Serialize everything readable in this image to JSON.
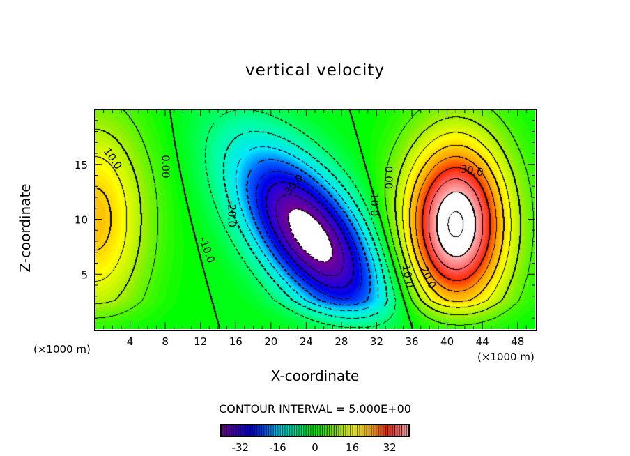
{
  "chart_data": {
    "type": "heatmap",
    "subtype": "filled-contour",
    "title": "vertical velocity",
    "xlabel": "X-coordinate",
    "ylabel": "Z-coordinate",
    "x_unit_label": "(×1000 m)",
    "z_unit_label": "(×1000 m)",
    "xlim": [
      0,
      50
    ],
    "ylim": [
      0,
      20
    ],
    "xticks": [
      4,
      8,
      12,
      16,
      20,
      24,
      28,
      32,
      36,
      40,
      44,
      48
    ],
    "yticks": [
      5,
      10,
      15
    ],
    "contour_interval_text": "CONTOUR INTERVAL = 5.000E+00",
    "contour_interval": 5,
    "colorbar": {
      "range": [
        -40,
        40
      ],
      "ticks": [
        -32,
        -16,
        0,
        16,
        32
      ]
    },
    "features": [
      {
        "name": "updraft-left-edge",
        "x": 0,
        "z": 10,
        "amplitude": 22
      },
      {
        "name": "downdraft",
        "x": 24.5,
        "z": 8.5,
        "amplitude": -44
      },
      {
        "name": "updraft-right",
        "x": 41,
        "z": 9.5,
        "amplitude": 46
      }
    ],
    "contour_labels": [
      {
        "text": "10.0",
        "x": 2,
        "z": 15.5,
        "angle": 55
      },
      {
        "text": "0.00",
        "x": 8,
        "z": 14.8,
        "angle": 90
      },
      {
        "text": "-30.0",
        "x": 22.5,
        "z": 13,
        "angle": -50
      },
      {
        "text": "-20.0",
        "x": 15.5,
        "z": 10.5,
        "angle": 90
      },
      {
        "text": "-10.0",
        "x": 12.7,
        "z": 7.2,
        "angle": 70
      },
      {
        "text": "-10.0",
        "x": 31.7,
        "z": 11.5,
        "angle": 90
      },
      {
        "text": "0.00",
        "x": 33.3,
        "z": 13.8,
        "angle": 90
      },
      {
        "text": "30.0",
        "x": 42.8,
        "z": 14.4,
        "angle": 10
      },
      {
        "text": "20.0",
        "x": 37.8,
        "z": 4.7,
        "angle": 65
      },
      {
        "text": "10.0",
        "x": 35.5,
        "z": 4.8,
        "angle": 80
      }
    ]
  }
}
